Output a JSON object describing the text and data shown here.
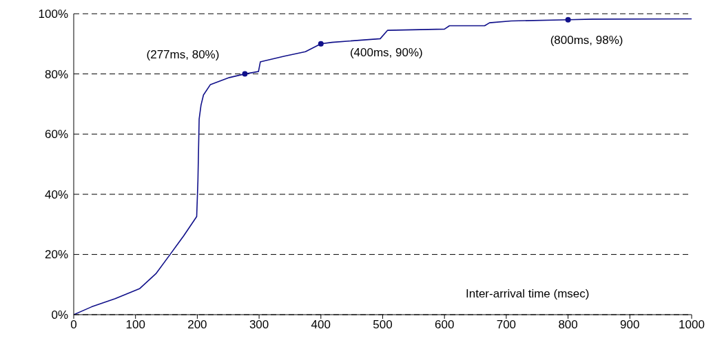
{
  "chart_data": {
    "type": "line",
    "xlabel": "Inter-arrival time (msec)",
    "xlim": [
      0,
      1000
    ],
    "xticks": [
      0,
      100,
      200,
      300,
      400,
      500,
      600,
      700,
      800,
      900,
      1000
    ],
    "ylim": [
      0,
      100
    ],
    "yticks": [
      {
        "value": 0,
        "label": "0%"
      },
      {
        "value": 20,
        "label": "20%"
      },
      {
        "value": 40,
        "label": "40%"
      },
      {
        "value": 60,
        "label": "60%"
      },
      {
        "value": 80,
        "label": "80%"
      },
      {
        "value": 100,
        "label": "100%"
      }
    ],
    "grid": "y",
    "marker": "none",
    "line_style": "solid",
    "series": [
      {
        "color": "#10108a",
        "x": [
          0,
          29,
          67,
          107,
          133,
          156,
          178,
          199,
          201,
          203,
          206,
          210,
          221,
          252,
          277,
          299,
          302,
          341,
          375,
          400,
          418,
          496,
          508,
          600,
          608,
          665,
          673,
          708,
          800,
          840,
          1000
        ],
        "values": [
          0,
          2.6,
          5.3,
          8.7,
          13.6,
          20,
          26.2,
          32.6,
          44.4,
          65,
          69.6,
          73,
          76.4,
          78.8,
          80,
          80.8,
          84,
          85.9,
          87.4,
          90,
          90.5,
          91.7,
          94.5,
          94.9,
          96,
          96,
          97,
          97.6,
          98,
          98.2,
          98.3
        ]
      }
    ],
    "annotations": [
      {
        "text": "(277ms, 80%)",
        "x": 277,
        "y": 80
      },
      {
        "text": "(400ms, 90%)",
        "x": 400,
        "y": 90
      },
      {
        "text": "(800ms, 98%)",
        "x": 800,
        "y": 98
      }
    ]
  }
}
